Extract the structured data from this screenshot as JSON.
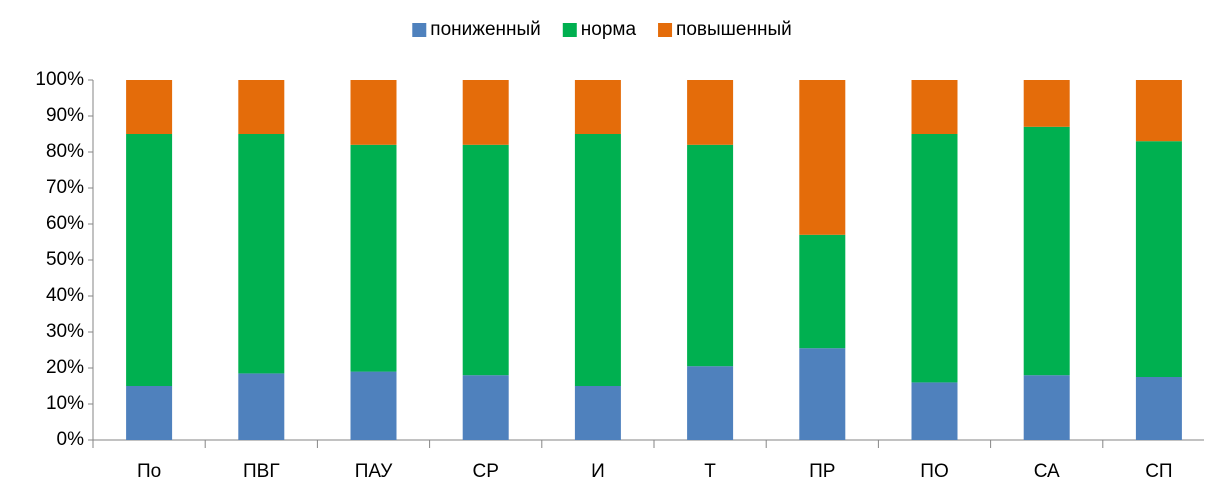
{
  "chart_data": {
    "type": "stacked_bar",
    "categories": [
      "По",
      "ПВГ",
      "ПАУ",
      "СР",
      "И",
      "Т",
      "ПР",
      "ПО",
      "СА",
      "СП"
    ],
    "series": [
      {
        "name": "пониженный",
        "color": "#4f81bd",
        "values": [
          15,
          18.5,
          19,
          18,
          15,
          20.5,
          25.5,
          16,
          18,
          17.5
        ]
      },
      {
        "name": "норма",
        "color": "#00b050",
        "values": [
          70,
          66.5,
          63,
          64,
          70,
          61.5,
          31.5,
          69,
          69,
          65.5
        ]
      },
      {
        "name": "повышенный",
        "color": "#e46c0a",
        "values": [
          15,
          15,
          18,
          18,
          15,
          18,
          43,
          15,
          13,
          17
        ]
      }
    ],
    "ylim": [
      0,
      100
    ],
    "yticks": [
      {
        "value": 0,
        "label": "0%"
      },
      {
        "value": 10,
        "label": "10%"
      },
      {
        "value": 20,
        "label": "20%"
      },
      {
        "value": 30,
        "label": "30%"
      },
      {
        "value": 40,
        "label": "40%"
      },
      {
        "value": 50,
        "label": "50%"
      },
      {
        "value": 60,
        "label": "60%"
      },
      {
        "value": 70,
        "label": "70%"
      },
      {
        "value": 80,
        "label": "80%"
      },
      {
        "value": 90,
        "label": "90%"
      },
      {
        "value": 100,
        "label": "100%"
      }
    ],
    "legend": "top"
  }
}
